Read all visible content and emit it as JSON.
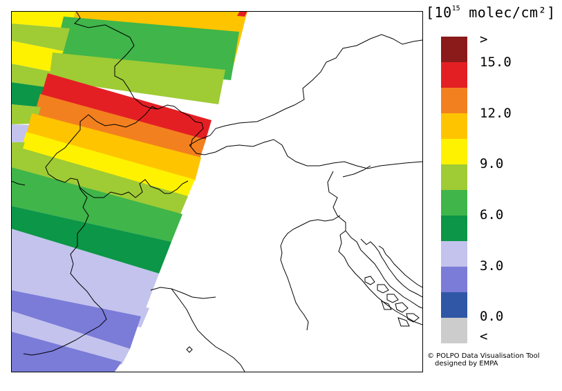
{
  "legend": {
    "units_prefix": "[10",
    "units_exponent": "15",
    "units_suffix": " molec/cm²]",
    "labels": [
      ">",
      "15.0",
      "12.0",
      "9.0",
      "6.0",
      "3.0",
      "0.0",
      "<"
    ],
    "colors": [
      "#8b1a1a",
      "#e41f24",
      "#f3801f",
      "#ffc400",
      "#fef200",
      "#9fcb35",
      "#3fb54a",
      "#0c9647",
      "#c3c3ee",
      "#7b7bd8",
      "#2f57a6",
      "#cccccc"
    ]
  },
  "credit": {
    "line1": "© POLPO Data Visualisation Tool",
    "line2": "designed by EMPA"
  }
}
